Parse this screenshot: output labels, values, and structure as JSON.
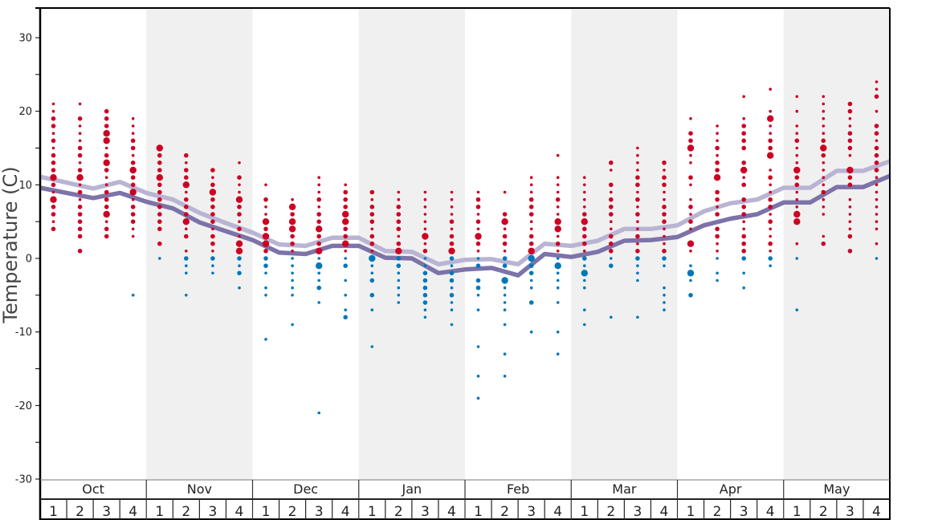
{
  "chart_data": {
    "type": "scatter",
    "ylabel": "Temperature (C)",
    "ylim": [
      -30,
      30
    ],
    "yticks": [
      "30",
      "20",
      "10",
      "0",
      "-10",
      "-20",
      "-30"
    ],
    "grid": false,
    "colors": {
      "warm_dot": "#cc0022",
      "cold_dot": "#0077bb",
      "line_light": "#b9b4d3",
      "line_dark": "#7d73a9",
      "band": "#f0f0f0"
    },
    "dot_size_scale": "dot size = frequency of daily temperature (1 small, 2 medium, 3 large)",
    "months": [
      {
        "label": "Oct",
        "shaded": false,
        "weeks": [
          {
            "label": "1",
            "top": 21,
            "sizes": [
              1,
              1,
              2,
              2,
              1,
              2,
              1,
              2,
              2,
              2,
              3,
              2,
              1,
              3,
              2,
              2,
              1,
              2
            ]
          },
          {
            "label": "2",
            "top": 21,
            "sizes": [
              1,
              0,
              2,
              1,
              1,
              1,
              2,
              2,
              1,
              2,
              3,
              1,
              2,
              1,
              2,
              2,
              2,
              2,
              2,
              0,
              2
            ]
          },
          {
            "label": "3",
            "top": 20,
            "sizes": [
              2,
              2,
              2,
              3,
              3,
              1,
              2,
              3,
              2,
              1,
              1,
              2,
              2,
              2,
              3,
              1,
              2,
              2
            ]
          },
          {
            "label": "4",
            "top": 19,
            "sizes": [
              1,
              1,
              1,
              2,
              2,
              1,
              2,
              3,
              2,
              2,
              3,
              1,
              2,
              2,
              2,
              1,
              1,
              0,
              0,
              0,
              0,
              0,
              0,
              0,
              1
            ]
          }
        ]
      },
      {
        "label": "Nov",
        "shaded": true,
        "weeks": [
          {
            "label": "1",
            "top": 15,
            "sizes": [
              3,
              2,
              2,
              2,
              3,
              2,
              2,
              2,
              2,
              2,
              2,
              2,
              0,
              2,
              0,
              1
            ]
          },
          {
            "label": "2",
            "top": 14,
            "sizes": [
              2,
              1,
              2,
              2,
              3,
              1,
              2,
              2,
              2,
              3,
              1,
              2,
              0,
              1,
              2,
              1,
              1,
              0,
              0,
              1
            ]
          },
          {
            "label": "3",
            "top": 12,
            "sizes": [
              2,
              1,
              2,
              3,
              2,
              2,
              2,
              2,
              1,
              2,
              2,
              1,
              2,
              1,
              1
            ]
          },
          {
            "label": "4",
            "top": 13,
            "sizes": [
              1,
              0,
              2,
              1,
              1,
              3,
              2,
              2,
              1,
              2,
              1,
              3,
              3,
              2,
              1,
              2,
              0,
              1
            ]
          }
        ]
      },
      {
        "label": "Dec",
        "shaded": false,
        "weeks": [
          {
            "label": "1",
            "top": 10,
            "sizes": [
              1,
              0,
              2,
              1,
              1,
              3,
              2,
              3,
              3,
              2,
              2,
              2,
              1,
              0,
              1,
              1,
              0,
              0,
              0,
              0,
              0,
              1
            ]
          },
          {
            "label": "2",
            "top": 8,
            "sizes": [
              1,
              3,
              2,
              3,
              3,
              2,
              2,
              1,
              1,
              1,
              1,
              1,
              1,
              1,
              0,
              0,
              0,
              1
            ]
          },
          {
            "label": "3",
            "top": 11,
            "sizes": [
              1,
              1,
              1,
              2,
              1,
              2,
              2,
              3,
              2,
              2,
              3,
              1,
              3,
              1,
              1,
              2,
              0,
              1,
              0,
              0,
              0,
              0,
              0,
              0,
              0,
              0,
              0,
              0,
              0,
              0,
              0,
              0,
              1
            ]
          },
          {
            "label": "4",
            "top": 10,
            "sizes": [
              1,
              2,
              2,
              2,
              3,
              3,
              2,
              2,
              3,
              1,
              1,
              2,
              0,
              1,
              0,
              1,
              0,
              1,
              2
            ]
          }
        ]
      },
      {
        "label": "Jan",
        "shaded": true,
        "weeks": [
          {
            "label": "1",
            "top": 9,
            "sizes": [
              2,
              1,
              2,
              2,
              2,
              1,
              2,
              2,
              1,
              3,
              1,
              1,
              2,
              0,
              2,
              0,
              1,
              0,
              0,
              0,
              0,
              1
            ]
          },
          {
            "label": "2",
            "top": 9,
            "sizes": [
              1,
              1,
              2,
              2,
              2,
              2,
              1,
              2,
              3,
              2,
              2,
              1,
              1,
              1,
              1,
              1
            ]
          },
          {
            "label": "3",
            "top": 9,
            "sizes": [
              1,
              1,
              1,
              1,
              1,
              1,
              3,
              1,
              2,
              1,
              1,
              2,
              2,
              2,
              2,
              2,
              1,
              1
            ]
          },
          {
            "label": "4",
            "top": 9,
            "sizes": [
              1,
              1,
              1,
              1,
              2,
              1,
              2,
              2,
              3,
              2,
              1,
              2,
              2,
              1,
              2,
              1,
              1,
              0,
              1
            ]
          }
        ]
      },
      {
        "label": "Feb",
        "shaded": false,
        "weeks": [
          {
            "label": "1",
            "top": 9,
            "sizes": [
              1,
              2,
              2,
              1,
              2,
              1,
              3,
              2,
              1,
              1,
              2,
              0,
              2,
              2,
              1,
              0,
              1,
              0,
              0,
              0,
              0,
              1,
              0,
              0,
              0,
              1,
              0,
              0,
              1
            ]
          },
          {
            "label": "2",
            "top": 9,
            "sizes": [
              1,
              0,
              0,
              2,
              3,
              1,
              2,
              2,
              1,
              2,
              2,
              0,
              3,
              1,
              1,
              1,
              1,
              0,
              1,
              0,
              0,
              0,
              1,
              0,
              0,
              1
            ]
          },
          {
            "label": "3",
            "top": 11,
            "sizes": [
              1,
              1,
              1,
              2,
              2,
              2,
              1,
              1,
              2,
              2,
              3,
              3,
              2,
              2,
              1,
              1,
              0,
              2,
              0,
              0,
              0,
              1
            ]
          },
          {
            "label": "4",
            "top": 14,
            "sizes": [
              1,
              0,
              0,
              1,
              1,
              1,
              2,
              1,
              1,
              3,
              3,
              1,
              2,
              1,
              1,
              3,
              1,
              1,
              1,
              0,
              1,
              0,
              0,
              0,
              1,
              0,
              0,
              1
            ]
          }
        ]
      },
      {
        "label": "Mar",
        "shaded": true,
        "weeks": [
          {
            "label": "1",
            "top": 11,
            "sizes": [
              1,
              1,
              1,
              1,
              1,
              2,
              3,
              2,
              2,
              2,
              1,
              2,
              1,
              3,
              1,
              1,
              0,
              0,
              1,
              0,
              1
            ]
          },
          {
            "label": "2",
            "top": 13,
            "sizes": [
              2,
              1,
              0,
              2,
              1,
              2,
              2,
              2,
              1,
              1,
              2,
              2,
              2,
              1,
              2,
              0,
              0,
              0,
              0,
              0,
              0,
              1
            ]
          },
          {
            "label": "3",
            "top": 15,
            "sizes": [
              1,
              1,
              1,
              1,
              2,
              2,
              1,
              2,
              1,
              2,
              1,
              1,
              2,
              1,
              2,
              2,
              1,
              1,
              1,
              0,
              0,
              0,
              0,
              1
            ]
          },
          {
            "label": "4",
            "top": 13,
            "sizes": [
              2,
              1,
              2,
              2,
              1,
              1,
              2,
              2,
              2,
              1,
              1,
              1,
              2,
              2,
              1,
              0,
              0,
              1,
              1,
              1,
              1
            ]
          }
        ]
      },
      {
        "label": "Apr",
        "shaded": false,
        "weeks": [
          {
            "label": "1",
            "top": 19,
            "sizes": [
              1,
              0,
              2,
              2,
              3,
              1,
              1,
              0,
              2,
              1,
              0,
              1,
              2,
              1,
              2,
              1,
              0,
              3,
              1,
              0,
              1,
              3,
              1,
              0,
              2
            ]
          },
          {
            "label": "2",
            "top": 18,
            "sizes": [
              1,
              1,
              1,
              2,
              1,
              2,
              2,
              3,
              0,
              2,
              2,
              1,
              2,
              0,
              2,
              2,
              1,
              1,
              1,
              0,
              1,
              1
            ]
          },
          {
            "label": "3",
            "top": 22,
            "sizes": [
              1,
              0,
              0,
              1,
              2,
              2,
              2,
              2,
              0,
              2,
              3,
              1,
              2,
              0,
              2,
              2,
              2,
              1,
              1,
              2,
              2,
              2,
              2,
              0,
              1,
              0,
              1
            ]
          },
          {
            "label": "4",
            "top": 23,
            "sizes": [
              1,
              0,
              0,
              1,
              3,
              1,
              1,
              2,
              2,
              3,
              0,
              1,
              2,
              1,
              1,
              2,
              2,
              1,
              2,
              1,
              1,
              2,
              1,
              2,
              1
            ]
          }
        ]
      },
      {
        "label": "May",
        "shaded": true,
        "weeks": [
          {
            "label": "1",
            "top": 22,
            "sizes": [
              1,
              0,
              1,
              0,
              1,
              1,
              2,
              1,
              1,
              1,
              3,
              2,
              2,
              1,
              1,
              1,
              3,
              3,
              0,
              0,
              1,
              0,
              1,
              0,
              0,
              0,
              0,
              0,
              0,
              1
            ]
          },
          {
            "label": "2",
            "top": 22,
            "sizes": [
              1,
              1,
              1,
              1,
              1,
              1,
              2,
              3,
              2,
              1,
              1,
              1,
              1,
              2,
              1,
              1,
              1,
              0,
              0,
              1,
              2
            ]
          },
          {
            "label": "3",
            "top": 21,
            "sizes": [
              2,
              2,
              1,
              1,
              2,
              2,
              2,
              1,
              0,
              3,
              2,
              2,
              0,
              1,
              1,
              1,
              1,
              1,
              2,
              0,
              2
            ]
          },
          {
            "label": "4",
            "top": 24,
            "sizes": [
              1,
              1,
              2,
              0,
              1,
              0,
              2,
              2,
              1,
              2,
              2,
              2,
              2,
              1,
              1,
              1,
              1,
              1,
              1,
              1,
              1,
              0,
              1,
              0,
              1
            ]
          }
        ]
      }
    ],
    "series": [
      {
        "values_at_week_boundaries": [
          11.1,
          10.3,
          9.5,
          10.4,
          8.9,
          8.0,
          6.2,
          4.8,
          3.5,
          1.9,
          1.7,
          2.8,
          2.8,
          1.0,
          0.9,
          -0.8,
          -0.2,
          -0.1,
          -0.8,
          2.0,
          1.7,
          2.4,
          4.0,
          4.0,
          4.5,
          6.4,
          7.5,
          8.0,
          9.6,
          9.6,
          11.9,
          11.9,
          13.2
        ],
        "color": "#b9b4d3"
      },
      {
        "values_at_week_boundaries": [
          9.6,
          8.9,
          8.2,
          8.9,
          7.7,
          6.8,
          4.9,
          3.7,
          2.5,
          0.8,
          0.6,
          1.7,
          1.7,
          0.1,
          0.0,
          -2.0,
          -1.5,
          -1.3,
          -2.3,
          0.6,
          0.2,
          0.9,
          2.4,
          2.5,
          2.9,
          4.5,
          5.4,
          6.0,
          7.6,
          7.6,
          9.7,
          9.7,
          11.2
        ],
        "color": "#7d73a9"
      }
    ]
  }
}
